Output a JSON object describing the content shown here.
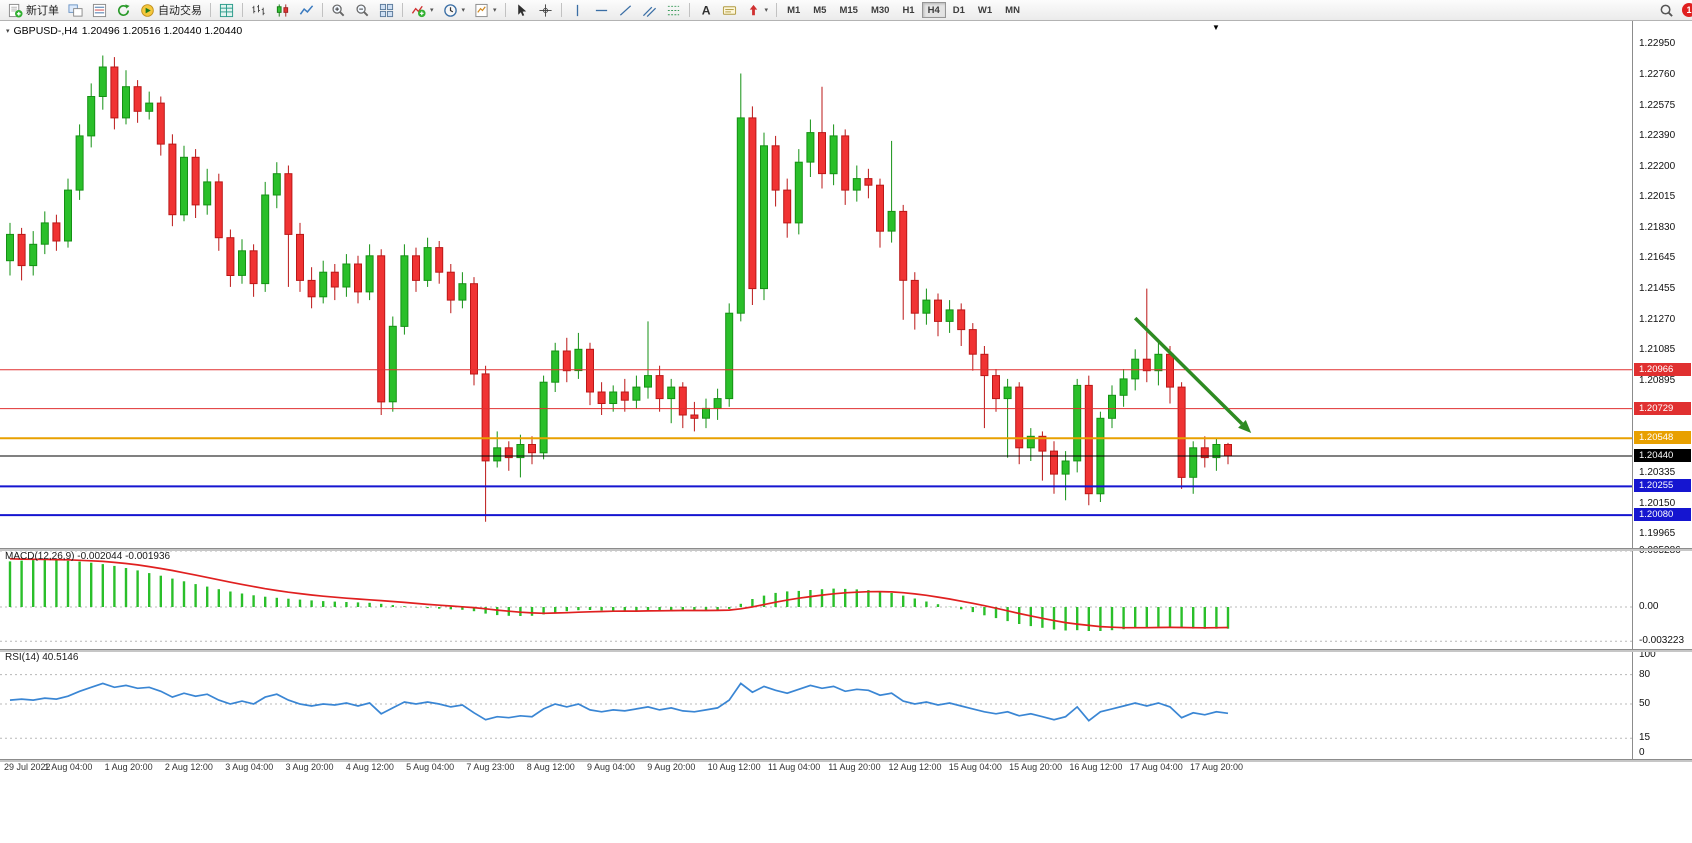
{
  "toolbar": {
    "new_order": "新订单",
    "autotrade": "自动交易",
    "timeframes": [
      "M1",
      "M5",
      "M15",
      "M30",
      "H1",
      "H4",
      "D1",
      "W1",
      "MN"
    ],
    "active_timeframe": "H4",
    "notification_badge": "1"
  },
  "chart": {
    "symbol": "GBPUSD-,H4",
    "ohlc": "1.20496 1.20516 1.20440 1.20440"
  },
  "chart_data": [
    {
      "type": "candlestick",
      "title": "GBPUSD-,H4",
      "timeframe": "H4",
      "ohlc_display": {
        "open": "1.20496",
        "high": "1.20516",
        "low": "1.20440",
        "close": "1.20440"
      },
      "y_axis": {
        "min": 1.19965,
        "max": 1.2295,
        "ticks": [
          1.2295,
          1.2276,
          1.22575,
          1.2239,
          1.222,
          1.22015,
          1.2183,
          1.21645,
          1.21455,
          1.2127,
          1.21085,
          1.20895,
          1.20335,
          1.2015,
          1.19965
        ]
      },
      "x_labels": [
        "29 Jul 2022",
        "1 Aug 04:00",
        "1 Aug 20:00",
        "2 Aug 12:00",
        "3 Aug 04:00",
        "3 Aug 20:00",
        "4 Aug 12:00",
        "5 Aug 04:00",
        "7 Aug 23:00",
        "8 Aug 12:00",
        "9 Aug 04:00",
        "9 Aug 20:00",
        "10 Aug 12:00",
        "11 Aug 04:00",
        "11 Aug 20:00",
        "12 Aug 12:00",
        "15 Aug 04:00",
        "15 Aug 20:00",
        "16 Aug 12:00",
        "17 Aug 04:00",
        "17 Aug 20:00"
      ],
      "colors": {
        "up": "#2abf2a",
        "up_border": "#149114",
        "down": "#f03333",
        "down_border": "#bb1717",
        "background": "#ffffff"
      },
      "candles": [
        [
          1.2163,
          1.2186,
          1.2154,
          1.2179
        ],
        [
          1.2179,
          1.2183,
          1.2151,
          1.216
        ],
        [
          1.216,
          1.2181,
          1.2154,
          1.2173
        ],
        [
          1.2173,
          1.2193,
          1.2167,
          1.2186
        ],
        [
          1.2186,
          1.2191,
          1.2169,
          1.2175
        ],
        [
          1.2175,
          1.2213,
          1.2171,
          1.2206
        ],
        [
          1.2206,
          1.2246,
          1.22,
          1.2239
        ],
        [
          1.2239,
          1.2271,
          1.2232,
          1.2263
        ],
        [
          1.2263,
          1.2288,
          1.2255,
          1.2281
        ],
        [
          1.2281,
          1.2287,
          1.2243,
          1.225
        ],
        [
          1.225,
          1.2279,
          1.2246,
          1.2269
        ],
        [
          1.2269,
          1.2273,
          1.2247,
          1.2254
        ],
        [
          1.2254,
          1.2266,
          1.2249,
          1.2259
        ],
        [
          1.2259,
          1.2263,
          1.2227,
          1.2234
        ],
        [
          1.2234,
          1.224,
          1.2184,
          1.2191
        ],
        [
          1.2191,
          1.2233,
          1.2187,
          1.2226
        ],
        [
          1.2226,
          1.2231,
          1.2189,
          1.2197
        ],
        [
          1.2197,
          1.2219,
          1.2191,
          1.2211
        ],
        [
          1.2211,
          1.2216,
          1.2169,
          1.2177
        ],
        [
          1.2177,
          1.2182,
          1.2147,
          1.2154
        ],
        [
          1.2154,
          1.2176,
          1.2149,
          1.2169
        ],
        [
          1.2169,
          1.2173,
          1.2141,
          1.2149
        ],
        [
          1.2149,
          1.2211,
          1.2144,
          1.2203
        ],
        [
          1.2203,
          1.2223,
          1.2195,
          1.2216
        ],
        [
          1.2216,
          1.2221,
          1.2147,
          1.2179
        ],
        [
          1.2179,
          1.2186,
          1.2144,
          1.2151
        ],
        [
          1.2151,
          1.2159,
          1.2134,
          1.2141
        ],
        [
          1.2141,
          1.2163,
          1.2137,
          1.2156
        ],
        [
          1.2156,
          1.2161,
          1.2139,
          1.2147
        ],
        [
          1.2147,
          1.2167,
          1.2141,
          1.2161
        ],
        [
          1.2161,
          1.2166,
          1.2137,
          1.2144
        ],
        [
          1.2144,
          1.2173,
          1.2139,
          1.2166
        ],
        [
          1.2166,
          1.217,
          1.2069,
          1.2077
        ],
        [
          1.2077,
          1.2129,
          1.2071,
          1.2123
        ],
        [
          1.2123,
          1.2173,
          1.2118,
          1.2166
        ],
        [
          1.2166,
          1.2171,
          1.2144,
          1.2151
        ],
        [
          1.2151,
          1.2177,
          1.2147,
          1.2171
        ],
        [
          1.2171,
          1.2175,
          1.2149,
          1.2156
        ],
        [
          1.2156,
          1.2161,
          1.2131,
          1.2139
        ],
        [
          1.2139,
          1.2156,
          1.2134,
          1.2149
        ],
        [
          1.2149,
          1.2153,
          1.2087,
          1.2094
        ],
        [
          1.2094,
          1.2099,
          1.2004,
          1.2041
        ],
        [
          1.2041,
          1.2059,
          1.2037,
          1.2049
        ],
        [
          1.2049,
          1.2053,
          1.2035,
          1.2043
        ],
        [
          1.2043,
          1.2057,
          1.2031,
          1.2051
        ],
        [
          1.2051,
          1.2056,
          1.2039,
          1.2046
        ],
        [
          1.2046,
          1.2093,
          1.2042,
          1.2089
        ],
        [
          1.2089,
          1.2113,
          1.2083,
          1.2108
        ],
        [
          1.2108,
          1.2116,
          1.2089,
          1.2096
        ],
        [
          1.2096,
          1.2119,
          1.2091,
          1.2109
        ],
        [
          1.2109,
          1.2113,
          1.2075,
          1.2083
        ],
        [
          1.2083,
          1.2089,
          1.2069,
          1.2076
        ],
        [
          1.2076,
          1.2087,
          1.2071,
          1.2083
        ],
        [
          1.2083,
          1.2091,
          1.2071,
          1.2078
        ],
        [
          1.2078,
          1.2093,
          1.2073,
          1.2086
        ],
        [
          1.2086,
          1.2126,
          1.2079,
          1.2093
        ],
        [
          1.2093,
          1.2099,
          1.2071,
          1.2079
        ],
        [
          1.2079,
          1.2091,
          1.2064,
          1.2086
        ],
        [
          1.2086,
          1.2089,
          1.2061,
          1.2069
        ],
        [
          1.2069,
          1.2077,
          1.2059,
          1.2067
        ],
        [
          1.2067,
          1.2079,
          1.2061,
          1.2073
        ],
        [
          1.2073,
          1.2085,
          1.2066,
          1.2079
        ],
        [
          1.2079,
          1.2137,
          1.2074,
          1.2131
        ],
        [
          1.2131,
          1.2277,
          1.2126,
          1.225
        ],
        [
          1.225,
          1.2257,
          1.2136,
          1.2146
        ],
        [
          1.2146,
          1.2241,
          1.2139,
          1.2233
        ],
        [
          1.2233,
          1.2239,
          1.2196,
          1.2206
        ],
        [
          1.2206,
          1.2213,
          1.2177,
          1.2186
        ],
        [
          1.2186,
          1.2231,
          1.2179,
          1.2223
        ],
        [
          1.2223,
          1.2249,
          1.2214,
          1.2241
        ],
        [
          1.2241,
          1.2269,
          1.2207,
          1.2216
        ],
        [
          1.2216,
          1.2246,
          1.2209,
          1.2239
        ],
        [
          1.2239,
          1.2243,
          1.2197,
          1.2206
        ],
        [
          1.2206,
          1.2221,
          1.2199,
          1.2213
        ],
        [
          1.2213,
          1.2219,
          1.2201,
          1.2209
        ],
        [
          1.2209,
          1.2213,
          1.2171,
          1.2181
        ],
        [
          1.2181,
          1.2236,
          1.2174,
          1.2193
        ],
        [
          1.2193,
          1.2197,
          1.2127,
          1.2151
        ],
        [
          1.2151,
          1.2156,
          1.2121,
          1.2131
        ],
        [
          1.2131,
          1.2146,
          1.2124,
          1.2139
        ],
        [
          1.2139,
          1.2143,
          1.2117,
          1.2126
        ],
        [
          1.2126,
          1.2139,
          1.2119,
          1.2133
        ],
        [
          1.2133,
          1.2137,
          1.2111,
          1.2121
        ],
        [
          1.2121,
          1.2125,
          1.2096,
          1.2106
        ],
        [
          1.2106,
          1.2111,
          1.2061,
          1.2093
        ],
        [
          1.2093,
          1.2097,
          1.2071,
          1.2079
        ],
        [
          1.2079,
          1.2091,
          1.2043,
          1.2086
        ],
        [
          1.2086,
          1.2089,
          1.2039,
          1.2049
        ],
        [
          1.2049,
          1.2061,
          1.2041,
          1.2056
        ],
        [
          1.2056,
          1.2059,
          1.2029,
          1.2047
        ],
        [
          1.2047,
          1.2053,
          1.2021,
          1.2033
        ],
        [
          1.2033,
          1.2047,
          1.2017,
          1.2041
        ],
        [
          1.2041,
          1.2091,
          1.2034,
          1.2087
        ],
        [
          1.2087,
          1.2093,
          1.2014,
          1.2021
        ],
        [
          1.2021,
          1.2071,
          1.2016,
          1.2067
        ],
        [
          1.2067,
          1.2087,
          1.2061,
          1.2081
        ],
        [
          1.2081,
          1.2097,
          1.2074,
          1.2091
        ],
        [
          1.2091,
          1.2109,
          1.2084,
          1.2103
        ],
        [
          1.2103,
          1.2146,
          1.2089,
          1.2096
        ],
        [
          1.2096,
          1.2113,
          1.2087,
          1.2106
        ],
        [
          1.2106,
          1.2111,
          1.2076,
          1.2086
        ],
        [
          1.2086,
          1.2089,
          1.2024,
          1.2031
        ],
        [
          1.2031,
          1.2053,
          1.2021,
          1.2049
        ],
        [
          1.2049,
          1.2056,
          1.2037,
          1.2043
        ],
        [
          1.2043,
          1.2055,
          1.2035,
          1.2051
        ],
        [
          1.2051,
          1.2052,
          1.2039,
          1.2044
        ]
      ],
      "hlines": [
        {
          "price": 1.20966,
          "color": "#e03030",
          "width": 1,
          "label": "1.20966"
        },
        {
          "price": 1.20729,
          "color": "#e03030",
          "width": 1,
          "label": "1.20729"
        },
        {
          "price": 1.20548,
          "color": "#e8a000",
          "width": 2,
          "label": "1.20548"
        },
        {
          "price": 1.2044,
          "color": "#000000",
          "width": 1,
          "label": "1.20440"
        },
        {
          "price": 1.20255,
          "color": "#1515d0",
          "width": 2,
          "label": "1.20255"
        },
        {
          "price": 1.2008,
          "color": "#1515d0",
          "width": 2,
          "label": "1.20080"
        }
      ],
      "arrow": {
        "from_bar": 97,
        "from_price": 1.2128,
        "to_bar": 107,
        "to_price": 1.2058,
        "color": "#2e8b22"
      }
    },
    {
      "type": "macd",
      "label": "MACD(12,26,9) -0.002044 -0.001936",
      "axis_labels": [
        {
          "text": "0.005286",
          "value": 0.005286
        },
        {
          "text": "0.00",
          "value": 0
        },
        {
          "text": "-0.003223",
          "value": -0.003223
        }
      ],
      "colors": {
        "histogram": "#2abf2a",
        "signal": "#e02020"
      },
      "histogram": [
        0.0043,
        0.00438,
        0.00442,
        0.00445,
        0.0044,
        0.00436,
        0.00428,
        0.00418,
        0.00405,
        0.00388,
        0.00368,
        0.00345,
        0.0032,
        0.00295,
        0.00268,
        0.00242,
        0.00216,
        0.00192,
        0.00168,
        0.00146,
        0.00127,
        0.0011,
        0.00097,
        0.00087,
        0.00078,
        0.0007,
        0.00062,
        0.00056,
        0.00051,
        0.00047,
        0.00043,
        0.0004,
        0.0003,
        0.00018,
        8e-05,
        -2e-05,
        -0.0001,
        -0.00016,
        -0.00022,
        -0.00026,
        -0.0004,
        -0.00062,
        -0.00076,
        -0.00083,
        -0.00085,
        -0.00083,
        -0.0007,
        -0.00052,
        -0.0004,
        -0.0003,
        -0.00028,
        -0.00032,
        -0.00034,
        -0.00036,
        -0.00036,
        -0.00032,
        -0.0003,
        -0.00028,
        -0.0003,
        -0.00033,
        -0.00033,
        -0.0003,
        -0.00018,
        0.0003,
        0.00075,
        0.00108,
        0.00133,
        0.00147,
        0.00152,
        0.0016,
        0.00168,
        0.00174,
        0.00171,
        0.00166,
        0.00159,
        0.00146,
        0.00132,
        0.00108,
        0.0008,
        0.00052,
        0.00026,
        2e-05,
        -0.00022,
        -0.00048,
        -0.00078,
        -0.00105,
        -0.00133,
        -0.0016,
        -0.0018,
        -0.00196,
        -0.00212,
        -0.00222,
        -0.00219,
        -0.00226,
        -0.00226,
        -0.00219,
        -0.00209,
        -0.00196,
        -0.00195,
        -0.00187,
        -0.00185,
        -0.00197,
        -0.00204,
        -0.00206,
        -0.00205,
        -0.002044
      ],
      "signal": [
        0.00455,
        0.00452,
        0.0045,
        0.00449,
        0.00447,
        0.00445,
        0.00441,
        0.00436,
        0.0043,
        0.00421,
        0.0041,
        0.00397,
        0.00381,
        0.00363,
        0.00344,
        0.00323,
        0.00301,
        0.00279,
        0.00257,
        0.00234,
        0.00213,
        0.00192,
        0.00173,
        0.00156,
        0.0014,
        0.00126,
        0.00113,
        0.00102,
        0.00092,
        0.00083,
        0.00075,
        0.00068,
        0.0006,
        0.00052,
        0.00043,
        0.00034,
        0.00025,
        0.00017,
        9e-05,
        2e-05,
        -6e-05,
        -0.00017,
        -0.00029,
        -0.0004,
        -0.00049,
        -0.00056,
        -0.00059,
        -0.00057,
        -0.00054,
        -0.00049,
        -0.00045,
        -0.00042,
        -0.0004,
        -0.00039,
        -0.00039,
        -0.00037,
        -0.00036,
        -0.00034,
        -0.00033,
        -0.00033,
        -0.00033,
        -0.00032,
        -0.00029,
        -0.00017,
        1e-05,
        0.00023,
        0.00045,
        0.00065,
        0.00083,
        0.00098,
        0.00112,
        0.00125,
        0.00134,
        0.0014,
        0.00144,
        0.00145,
        0.00142,
        0.00135,
        0.00124,
        0.0011,
        0.00093,
        0.00075,
        0.00055,
        0.00035,
        0.00012,
        -0.00011,
        -0.00036,
        -0.00061,
        -0.00084,
        -0.00107,
        -0.00128,
        -0.00147,
        -0.00161,
        -0.00174,
        -0.00185,
        -0.00191,
        -0.00195,
        -0.00195,
        -0.00195,
        -0.00193,
        -0.00192,
        -0.00193,
        -0.00195,
        -0.00196,
        -0.00195,
        -0.001936
      ]
    },
    {
      "type": "rsi",
      "label": "RSI(14) 40.5146",
      "color": "#3a86d4",
      "levels": [
        80,
        50,
        15
      ],
      "axis_labels": [
        {
          "text": "100",
          "value": 100
        },
        {
          "text": "80",
          "value": 80
        },
        {
          "text": "50",
          "value": 50
        },
        {
          "text": "15",
          "value": 15
        },
        {
          "text": "0",
          "value": 0
        }
      ],
      "values": [
        54,
        55,
        54,
        56,
        55,
        58,
        63,
        67,
        71,
        67,
        69,
        66,
        67,
        63,
        57,
        61,
        58,
        60,
        54,
        50,
        53,
        50,
        57,
        60,
        54,
        50,
        48,
        50,
        49,
        51,
        48,
        51,
        40,
        46,
        52,
        50,
        52,
        50,
        47,
        49,
        41,
        34,
        37,
        36,
        38,
        37,
        45,
        50,
        47,
        50,
        44,
        42,
        44,
        43,
        45,
        47,
        44,
        46,
        43,
        42,
        44,
        46,
        54,
        71,
        62,
        68,
        64,
        61,
        65,
        69,
        66,
        68,
        63,
        65,
        64,
        59,
        61,
        53,
        50,
        52,
        49,
        51,
        48,
        45,
        42,
        40,
        42,
        38,
        40,
        37,
        34,
        37,
        47,
        33,
        42,
        45,
        48,
        51,
        48,
        51,
        47,
        36,
        41,
        39,
        42,
        40.5
      ]
    }
  ]
}
